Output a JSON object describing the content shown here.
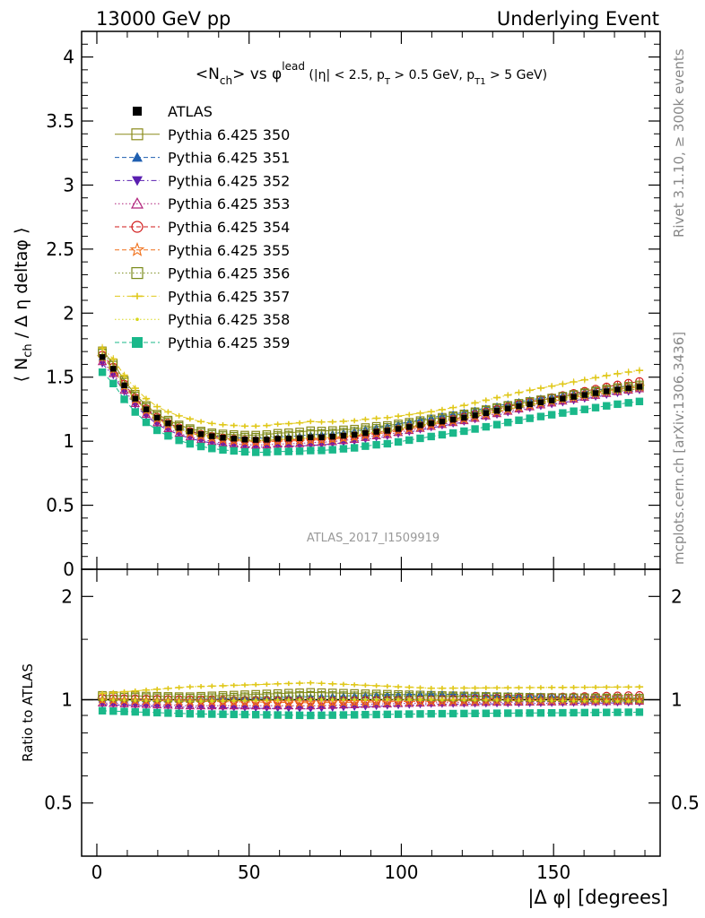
{
  "header": {
    "left": "13000 GeV pp",
    "right": "Underlying Event"
  },
  "side_labels": {
    "rivet": "Rivet 3.1.10, ≥ 300k events",
    "mcplots": "mcplots.cern.ch [arXiv:1306.3436]"
  },
  "analysis_id": "ATLAS_2017_I1509919",
  "title": {
    "main": "<N",
    "sub1": "ch",
    "main2": "> vs φ",
    "sup": "lead",
    "cuts1": " (|η| < 2.5, p",
    "cuts_sub1": "T",
    "cuts2": " > 0.5 GeV, p",
    "cuts_sub2": "T1",
    "cuts3": " > 5 GeV)"
  },
  "ylabel_main": "⟨ N_ch / Δη deltaφ ⟩",
  "ylabel_ratio": "Ratio to ATLAS",
  "xlabel": "|Δ φ| [degrees]",
  "chart_data": [
    {
      "type": "scatter",
      "panel": "main",
      "xlim": [
        -5,
        185
      ],
      "ylim": [
        0,
        4.2
      ],
      "x_ticks": [
        0,
        50,
        100,
        150
      ],
      "y_ticks": [
        0,
        0.5,
        1,
        1.5,
        2,
        2.5,
        3,
        3.5,
        4
      ],
      "y_tick_labels": [
        "0",
        "0.5",
        "1",
        "1.5",
        "2",
        "2.5",
        "3",
        "3.5",
        "4"
      ],
      "legend_position": "top-left",
      "x_bins": [
        1.8,
        5.4,
        9.0,
        12.6,
        16.2,
        19.8,
        23.4,
        27.0,
        30.6,
        34.2,
        37.8,
        41.4,
        45.0,
        48.6,
        52.2,
        55.8,
        59.4,
        63.0,
        66.6,
        70.2,
        73.8,
        77.4,
        81.0,
        84.6,
        88.2,
        91.8,
        95.4,
        99.0,
        102.6,
        106.2,
        109.8,
        113.4,
        117.0,
        120.6,
        124.2,
        127.8,
        131.4,
        135.0,
        138.6,
        142.2,
        145.8,
        149.4,
        153.0,
        156.6,
        160.2,
        163.8,
        167.4,
        171.0,
        174.6,
        178.2
      ],
      "reference": {
        "name": "ATLAS",
        "curve": [
          [
            0,
            1.7
          ],
          [
            5,
            1.58
          ],
          [
            10,
            1.4
          ],
          [
            15,
            1.27
          ],
          [
            20,
            1.18
          ],
          [
            25,
            1.12
          ],
          [
            30,
            1.08
          ],
          [
            35,
            1.05
          ],
          [
            40,
            1.03
          ],
          [
            45,
            1.02
          ],
          [
            50,
            1.01
          ],
          [
            55,
            1.01
          ],
          [
            60,
            1.02
          ],
          [
            65,
            1.02
          ],
          [
            70,
            1.03
          ],
          [
            75,
            1.03
          ],
          [
            80,
            1.04
          ],
          [
            85,
            1.05
          ],
          [
            90,
            1.07
          ],
          [
            95,
            1.08
          ],
          [
            100,
            1.1
          ],
          [
            110,
            1.14
          ],
          [
            120,
            1.18
          ],
          [
            130,
            1.23
          ],
          [
            140,
            1.28
          ],
          [
            150,
            1.32
          ],
          [
            160,
            1.36
          ],
          [
            170,
            1.4
          ],
          [
            180,
            1.43
          ]
        ]
      },
      "series": [
        {
          "name": "Pythia 6.425 350",
          "marker": "square-open",
          "color": "#8a8a1a",
          "line": "solid",
          "profile": [
            [
              0,
              1.03
            ],
            [
              30,
              1.02
            ],
            [
              70,
              1.05
            ],
            [
              110,
              1.03
            ],
            [
              180,
              1.0
            ]
          ]
        },
        {
          "name": "Pythia 6.425 351",
          "marker": "triangle-up-filled",
          "color": "#1f5fb0",
          "line": "dashed",
          "profile": [
            [
              0,
              1.0
            ],
            [
              30,
              1.0
            ],
            [
              70,
              1.02
            ],
            [
              110,
              1.04
            ],
            [
              180,
              1.01
            ]
          ]
        },
        {
          "name": "Pythia 6.425 352",
          "marker": "triangle-down-filled",
          "color": "#5a1fb0",
          "line": "dashdot",
          "profile": [
            [
              0,
              0.97
            ],
            [
              30,
              0.95
            ],
            [
              70,
              0.94
            ],
            [
              110,
              0.97
            ],
            [
              180,
              0.98
            ]
          ]
        },
        {
          "name": "Pythia 6.425 353",
          "marker": "triangle-up-open",
          "color": "#b0207a",
          "line": "dotted",
          "profile": [
            [
              0,
              0.98
            ],
            [
              30,
              0.96
            ],
            [
              70,
              0.96
            ],
            [
              110,
              0.98
            ],
            [
              180,
              0.99
            ]
          ]
        },
        {
          "name": "Pythia 6.425 354",
          "marker": "circle-open",
          "color": "#d11a1a",
          "line": "dashed",
          "profile": [
            [
              0,
              1.01
            ],
            [
              30,
              1.0
            ],
            [
              70,
              0.99
            ],
            [
              110,
              1.0
            ],
            [
              180,
              1.03
            ]
          ]
        },
        {
          "name": "Pythia 6.425 355",
          "marker": "star-open",
          "color": "#f0701a",
          "line": "dashed",
          "profile": [
            [
              0,
              1.0
            ],
            [
              30,
              0.99
            ],
            [
              70,
              0.98
            ],
            [
              110,
              0.99
            ],
            [
              180,
              1.0
            ]
          ]
        },
        {
          "name": "Pythia 6.425 356",
          "marker": "square-open",
          "color": "#7a8a1a",
          "line": "dotted",
          "profile": [
            [
              0,
              1.02
            ],
            [
              30,
              1.01
            ],
            [
              70,
              1.03
            ],
            [
              110,
              1.02
            ],
            [
              180,
              1.01
            ]
          ]
        },
        {
          "name": "Pythia 6.425 357",
          "marker": "cross",
          "color": "#e0c81a",
          "line": "dashdot",
          "profile": [
            [
              0,
              1.04
            ],
            [
              30,
              1.09
            ],
            [
              70,
              1.12
            ],
            [
              110,
              1.08
            ],
            [
              180,
              1.09
            ]
          ]
        },
        {
          "name": "Pythia 6.425 358",
          "marker": "dot",
          "color": "#d8d81a",
          "line": "dotted",
          "profile": [
            [
              0,
              1.0
            ],
            [
              30,
              0.99
            ],
            [
              70,
              1.0
            ],
            [
              110,
              1.0
            ],
            [
              180,
              0.99
            ]
          ]
        },
        {
          "name": "Pythia 6.425 359",
          "marker": "square-filled",
          "color": "#1ab88a",
          "line": "dashed",
          "profile": [
            [
              0,
              0.93
            ],
            [
              30,
              0.91
            ],
            [
              70,
              0.9
            ],
            [
              110,
              0.91
            ],
            [
              180,
              0.92
            ]
          ]
        }
      ]
    },
    {
      "type": "scatter",
      "panel": "ratio",
      "xlim": [
        -5,
        185
      ],
      "ylim": [
        0.35,
        2.4
      ],
      "y_scale": "log",
      "x_ticks": [
        0,
        50,
        100,
        150
      ],
      "x_tick_labels": [
        "0",
        "50",
        "100",
        "150"
      ],
      "y_ticks": [
        0.5,
        1,
        2
      ],
      "y_tick_labels": [
        "0.5",
        "1",
        "2"
      ],
      "reference_line": 1.0
    }
  ]
}
